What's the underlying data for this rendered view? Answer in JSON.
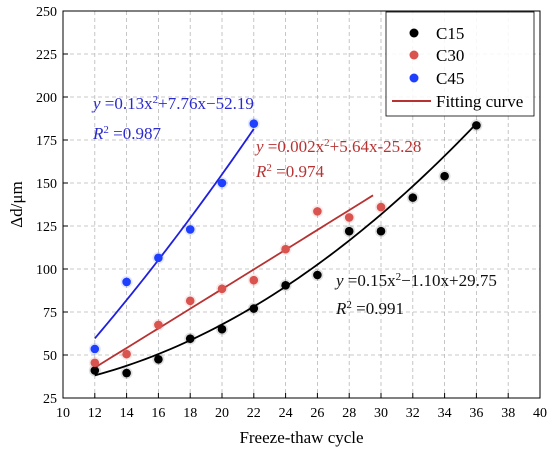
{
  "chart_data": {
    "type": "scatter",
    "xlabel": "Freeze-thaw cycle",
    "ylabel": "Δd/μm",
    "xlim": [
      10,
      40
    ],
    "ylim": [
      25,
      250
    ],
    "xticks": [
      10,
      12,
      14,
      16,
      18,
      20,
      22,
      24,
      26,
      28,
      30,
      32,
      34,
      36,
      38,
      40
    ],
    "yticks": [
      25,
      50,
      75,
      100,
      125,
      150,
      175,
      200,
      225,
      250
    ],
    "grid": true,
    "legend_position": "top-right",
    "series": [
      {
        "name": "C15",
        "color": "#000000",
        "x": [
          12,
          14,
          16,
          18,
          20,
          22,
          24,
          26,
          28,
          30,
          32,
          34,
          36
        ],
        "y": [
          41,
          39.5,
          47.5,
          59.5,
          65,
          77,
          90.5,
          96.5,
          122,
          122,
          141.5,
          154,
          183.5
        ],
        "fit": {
          "a": 0.15,
          "b": -1.1,
          "c": 29.75,
          "x_range": [
            12,
            36
          ],
          "r2_text": "0.991"
        }
      },
      {
        "name": "C30",
        "color": "#d9534f",
        "x": [
          12,
          14,
          16,
          18,
          20,
          22,
          24,
          26,
          28,
          30
        ],
        "y": [
          45.5,
          50.5,
          67.5,
          81.5,
          88.5,
          93.5,
          111.5,
          133.5,
          130,
          136
        ],
        "fit": {
          "a": 0.002,
          "b": 5.64,
          "c": -25.28,
          "x_range": [
            12,
            29.5
          ],
          "r2_text": "0.974"
        }
      },
      {
        "name": "C45",
        "color": "#1f3fff",
        "x": [
          12,
          14,
          16,
          18,
          20,
          22
        ],
        "y": [
          53.5,
          92.5,
          106.5,
          123,
          150,
          184.5
        ],
        "fit": {
          "a": 0.13,
          "b": 7.76,
          "c": -52.19,
          "x_range": [
            12,
            22
          ],
          "r2_text": "0.987"
        }
      }
    ],
    "legend_fit_label": "Fitting curve",
    "fit_line_color": "#b83232",
    "annotations": {
      "c45_eq": {
        "y": "y",
        "eq_a": " =0.13x",
        "sup": "2",
        "eq_b": "+7.76x−52.19",
        "r": "R",
        "r_sup": "2",
        "r_val": " =0.987"
      },
      "c30_eq": {
        "y": "y",
        "eq_a": " =0.002x",
        "sup": "2",
        "eq_b": "+5.64x-25.28",
        "r": "R",
        "r_sup": "2",
        "r_val": " =0.974"
      },
      "c15_eq": {
        "y": "y",
        "eq_a": " =0.15x",
        "sup": "2",
        "eq_b": "−1.10x+29.75",
        "r": "R",
        "r_sup": "2",
        "r_val": " =0.991"
      }
    },
    "colors": {
      "c45_text": "#2a2ad0",
      "c30_text": "#b83232",
      "c15_text": "#111111",
      "c45_line": "#1f1fe0",
      "c30_line": "#b83232",
      "c15_line": "#000000"
    }
  }
}
